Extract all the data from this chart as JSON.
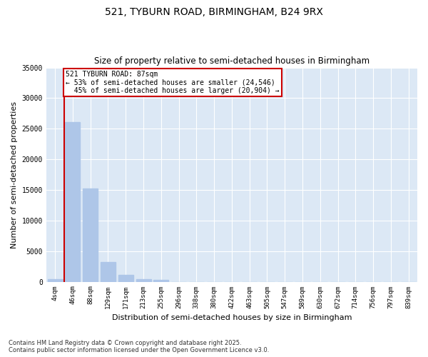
{
  "title_line1": "521, TYBURN ROAD, BIRMINGHAM, B24 9RX",
  "title_line2": "Size of property relative to semi-detached houses in Birmingham",
  "xlabel": "Distribution of semi-detached houses by size in Birmingham",
  "ylabel": "Number of semi-detached properties",
  "categories": [
    "4sqm",
    "46sqm",
    "88sqm",
    "129sqm",
    "171sqm",
    "213sqm",
    "255sqm",
    "296sqm",
    "338sqm",
    "380sqm",
    "422sqm",
    "463sqm",
    "505sqm",
    "547sqm",
    "589sqm",
    "630sqm",
    "672sqm",
    "714sqm",
    "756sqm",
    "797sqm",
    "839sqm"
  ],
  "values": [
    400,
    26100,
    15200,
    3200,
    1100,
    450,
    300,
    0,
    0,
    0,
    0,
    0,
    0,
    0,
    0,
    0,
    0,
    0,
    0,
    0,
    0
  ],
  "bar_color": "#aec6e8",
  "marker_label": "521 TYBURN ROAD: 87sqm",
  "smaller_pct": "53%",
  "smaller_count": "24,546",
  "larger_pct": "45%",
  "larger_count": "20,904",
  "ylim": [
    0,
    35000
  ],
  "yticks": [
    0,
    5000,
    10000,
    15000,
    20000,
    25000,
    30000,
    35000
  ],
  "ytick_labels": [
    "0",
    "5000",
    "10000",
    "15000",
    "20000",
    "25000",
    "30000",
    "35000"
  ],
  "marker_color": "#cc0000",
  "bg_color": "#dce8f5",
  "footer_line1": "Contains HM Land Registry data © Crown copyright and database right 2025.",
  "footer_line2": "Contains public sector information licensed under the Open Government Licence v3.0."
}
